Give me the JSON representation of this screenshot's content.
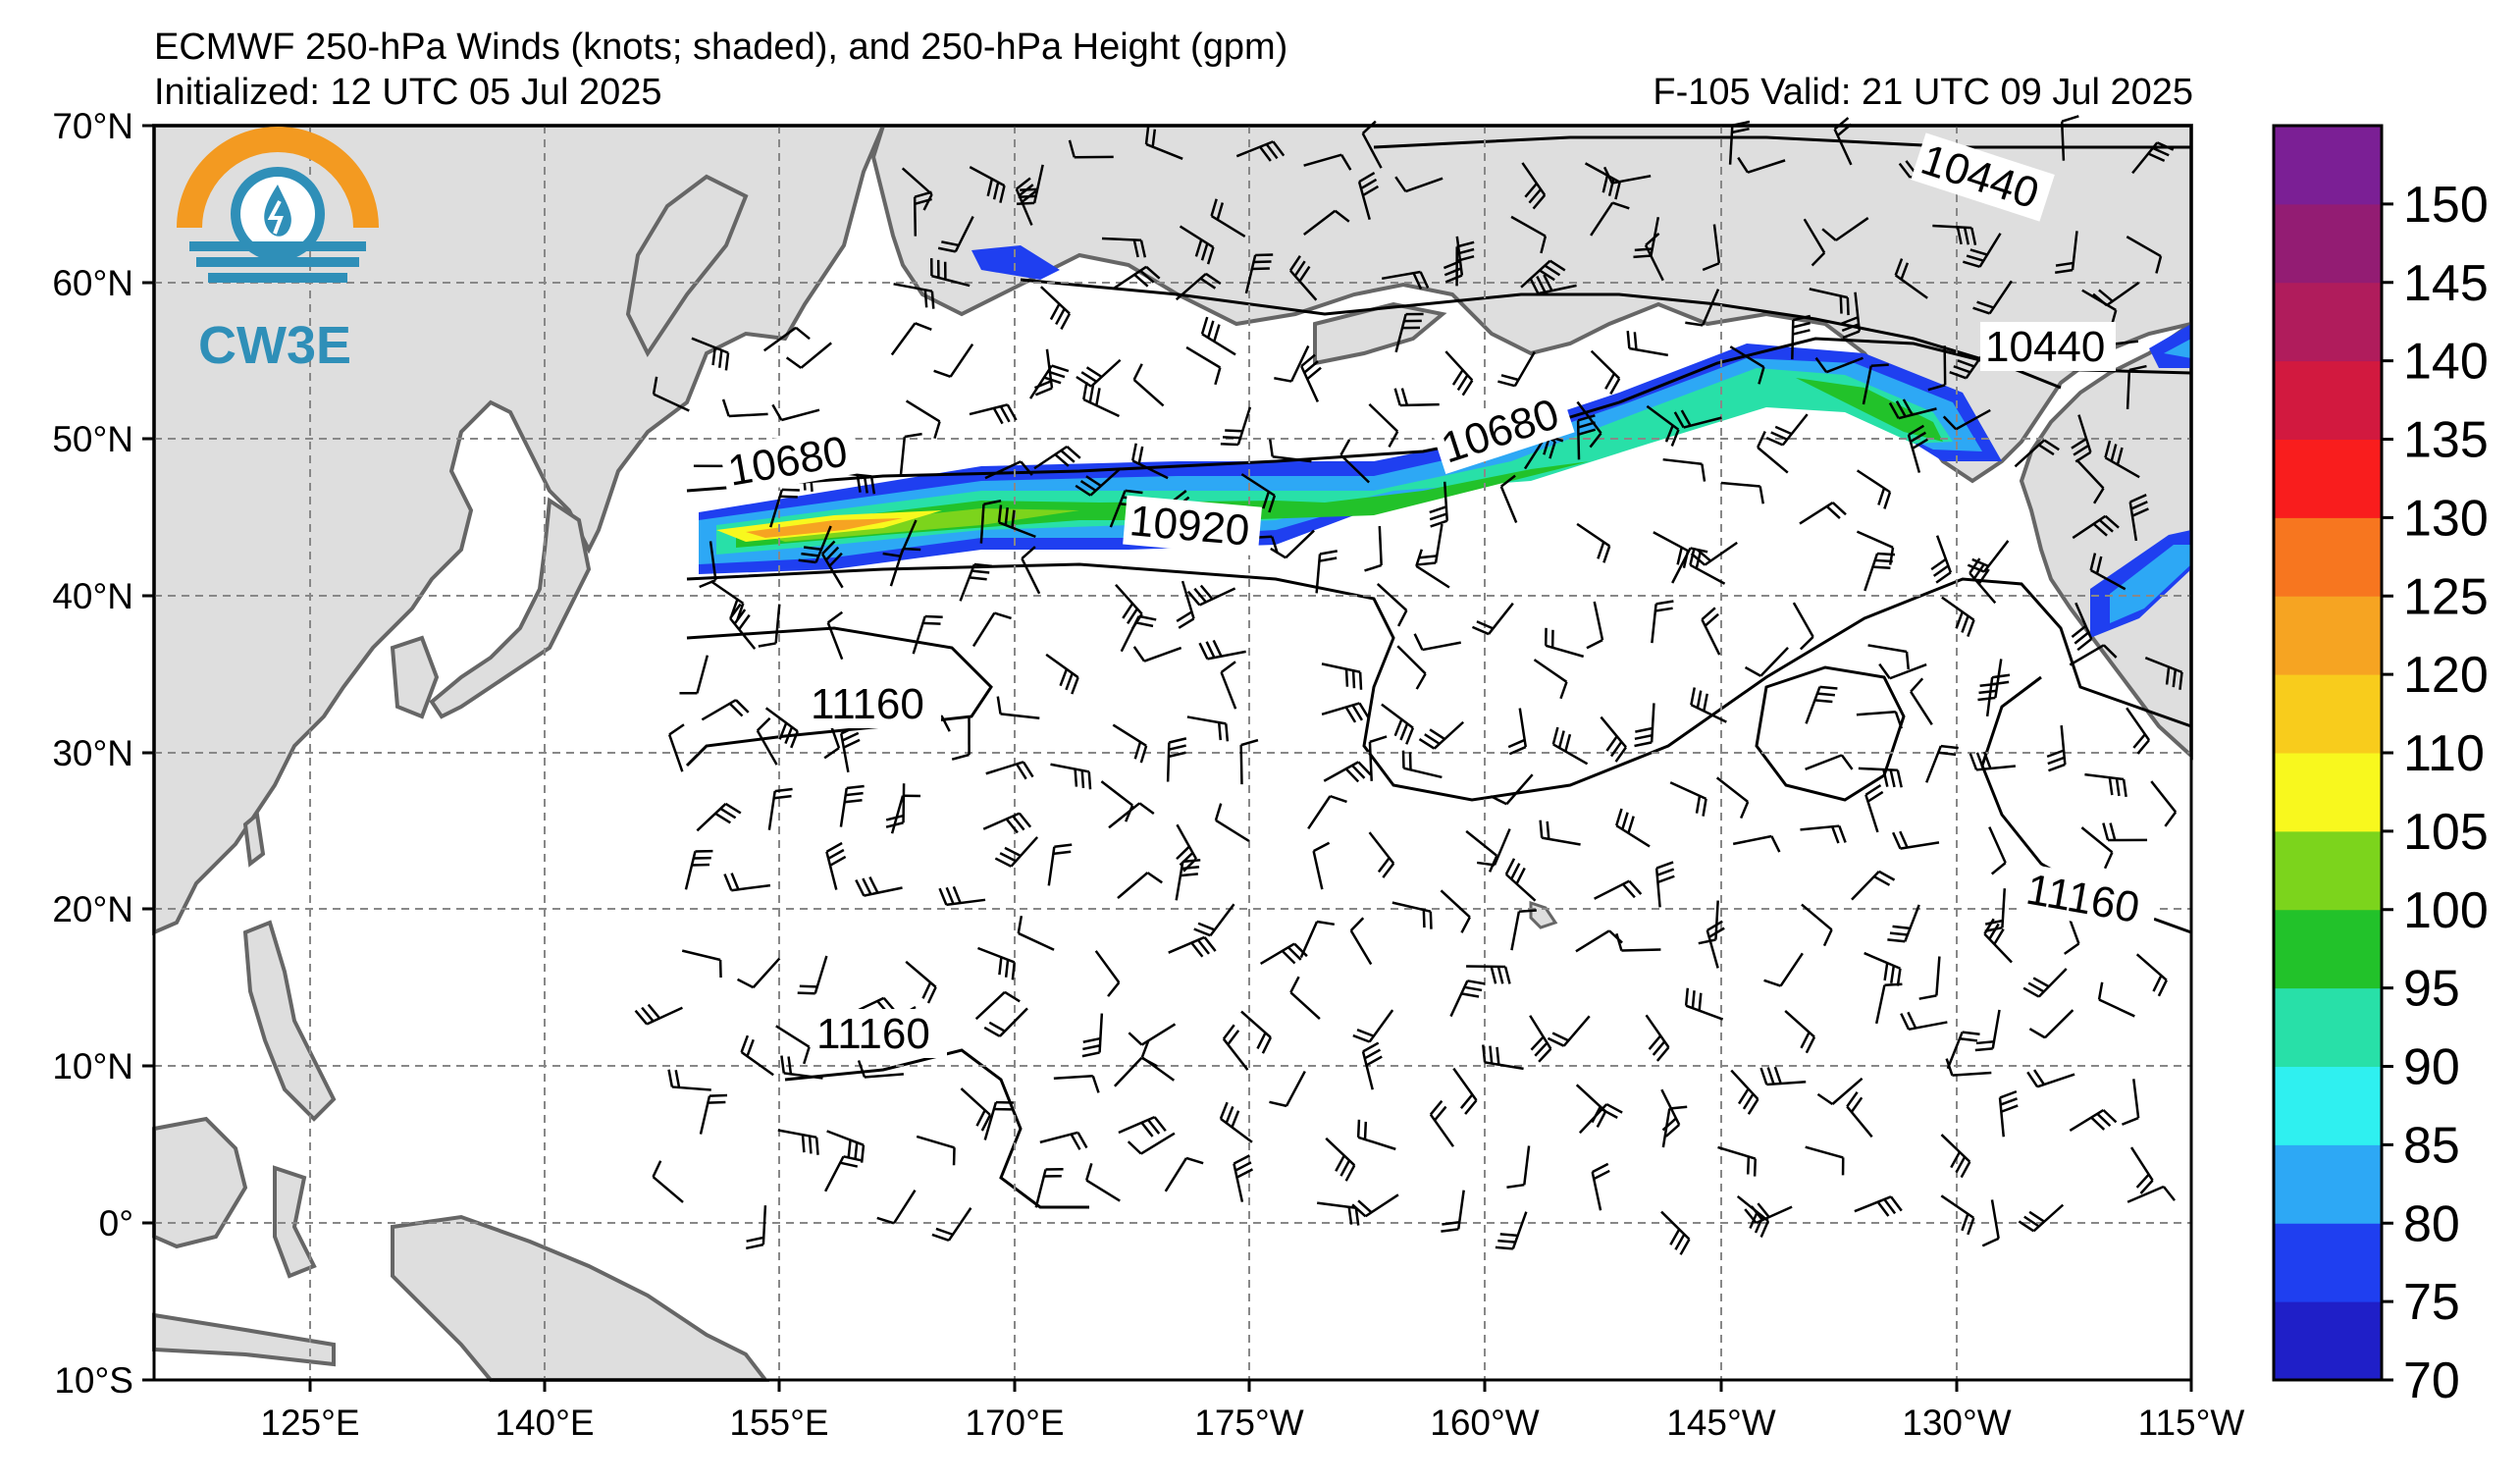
{
  "header": {
    "title": "ECMWF 250-hPa Winds (knots; shaded), and 250-hPa Height (gpm)",
    "initialized": "Initialized: 12 UTC 05 Jul 2025",
    "valid": "F-105  Valid: 21 UTC 09 Jul 2025"
  },
  "logo": {
    "text": "CW3E",
    "colors": {
      "orange": "#f39a21",
      "teal": "#2f8fb8"
    }
  },
  "axes": {
    "lat_labels": [
      "70°N",
      "60°N",
      "50°N",
      "40°N",
      "30°N",
      "20°N",
      "10°N",
      "0°",
      "10°S"
    ],
    "lon_labels": [
      "125°E",
      "140°E",
      "155°E",
      "170°E",
      "175°W",
      "160°W",
      "145°W",
      "130°W",
      "115°W"
    ]
  },
  "contours": {
    "labels": [
      "10440",
      "10440",
      "10680",
      "10680",
      "10920",
      "11160",
      "11160",
      "11160"
    ]
  },
  "colorbar": {
    "ticks": [
      "70",
      "75",
      "80",
      "85",
      "90",
      "95",
      "100",
      "105",
      "110",
      "120",
      "125",
      "130",
      "135",
      "140",
      "145",
      "150"
    ],
    "colors": [
      "#1f1fc8",
      "#1f3ff0",
      "#2da8f5",
      "#2ff0f0",
      "#28e0a8",
      "#22c22a",
      "#7cd41c",
      "#f8f81e",
      "#f8cc1c",
      "#f6a422",
      "#f7761f",
      "#f91d1d",
      "#d2193f",
      "#b01c5c",
      "#931c73",
      "#7b1f95"
    ],
    "units": "knots"
  },
  "map": {
    "land_color": "#dedede",
    "ocean_color": "#ffffff",
    "grid_color": "#888888",
    "jet_core_max": 120
  }
}
